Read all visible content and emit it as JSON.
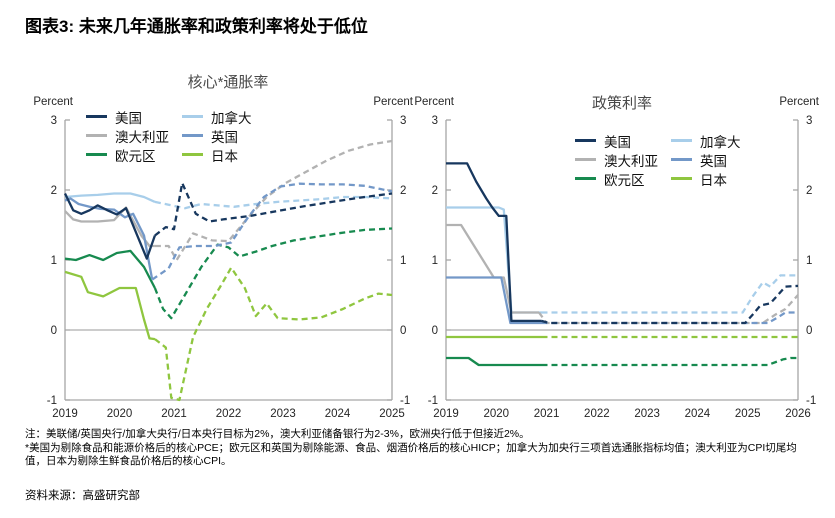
{
  "title": "图表3: 未来几年通胀率和政策利率将处于低位",
  "notes": [
    "注：美联储/英国央行/加拿大央行/日本央行目标为2%，澳大利亚储备银行为2-3%，欧洲央行低于但接近2%。",
    "*美国为剔除食品和能源价格后的核心PCE；欧元区和英国为剔除能源、食品、烟酒价格后的核心HICP；加拿大为加央行三项首选通胀指标均值；澳大利亚为CPI切尾均值，日本为剔除生鲜食品价格后的核心CPI。"
  ],
  "source": "资料来源：高盛研究部",
  "colors": {
    "us_navy": "#17375E",
    "australia_gray": "#B2B2B2",
    "eurozone_green": "#178A4F",
    "canada_lightblue": "#A8CEEA",
    "uk_steelblue": "#7398C8",
    "japan_yellowgreen": "#8FC63F",
    "axis_gray": "#A6A6A6",
    "zero_line_gray": "#999999"
  },
  "chart_data": [
    {
      "type": "line",
      "title": "核心*通胀率",
      "ylabel_left": "Percent",
      "ylabel_right": "Percent",
      "ylim": [
        -1,
        3
      ],
      "xlim": [
        2019,
        2025
      ],
      "y_ticks": [
        -1,
        0,
        1,
        2,
        3
      ],
      "x_ticks": [
        2019,
        2020,
        2021,
        2022,
        2023,
        2024,
        2025
      ],
      "forecast_start": 2020.65,
      "forecast_style": "dashed",
      "grid": "zero-line-only",
      "legend_position": "top-center-two-columns",
      "draw_order": [
        5,
        2,
        1,
        3,
        4,
        0
      ],
      "series": [
        {
          "name": "美国",
          "color": "#17375E",
          "points": [
            [
              2019,
              1.95
            ],
            [
              2019.15,
              1.71
            ],
            [
              2019.3,
              1.66
            ],
            [
              2019.45,
              1.71
            ],
            [
              2019.6,
              1.78
            ],
            [
              2019.78,
              1.71
            ],
            [
              2019.95,
              1.65
            ],
            [
              2020.12,
              1.74
            ],
            [
              2020.5,
              1.02
            ],
            [
              2020.65,
              1.35
            ],
            [
              2020.85,
              1.47
            ],
            [
              2021.0,
              1.44
            ],
            [
              2021.15,
              2.1
            ],
            [
              2021.4,
              1.66
            ],
            [
              2021.65,
              1.55
            ],
            [
              2021.9,
              1.58
            ],
            [
              2022.4,
              1.63
            ],
            [
              2022.9,
              1.7
            ],
            [
              2023.4,
              1.77
            ],
            [
              2023.9,
              1.83
            ],
            [
              2024.4,
              1.89
            ],
            [
              2025,
              1.95
            ]
          ]
        },
        {
          "name": "澳大利亚",
          "color": "#B2B2B2",
          "points": [
            [
              2019,
              1.7
            ],
            [
              2019.15,
              1.58
            ],
            [
              2019.3,
              1.55
            ],
            [
              2019.6,
              1.55
            ],
            [
              2019.9,
              1.57
            ],
            [
              2020.12,
              1.75
            ],
            [
              2020.4,
              1.35
            ],
            [
              2020.55,
              1.2
            ],
            [
              2020.65,
              1.2
            ],
            [
              2020.9,
              1.2
            ],
            [
              2021.05,
              1.0
            ],
            [
              2021.35,
              1.38
            ],
            [
              2021.7,
              1.28
            ],
            [
              2022.0,
              1.27
            ],
            [
              2022.35,
              1.6
            ],
            [
              2022.7,
              1.9
            ],
            [
              2023.05,
              2.1
            ],
            [
              2023.4,
              2.25
            ],
            [
              2023.8,
              2.42
            ],
            [
              2024.2,
              2.56
            ],
            [
              2024.6,
              2.65
            ],
            [
              2025,
              2.7
            ]
          ]
        },
        {
          "name": "欧元区",
          "color": "#178A4F",
          "points": [
            [
              2019,
              1.02
            ],
            [
              2019.2,
              1.0
            ],
            [
              2019.45,
              1.07
            ],
            [
              2019.7,
              1.0
            ],
            [
              2019.95,
              1.1
            ],
            [
              2020.2,
              1.13
            ],
            [
              2020.45,
              0.9
            ],
            [
              2020.65,
              0.6
            ],
            [
              2020.8,
              0.3
            ],
            [
              2020.95,
              0.17
            ],
            [
              2021.2,
              0.5
            ],
            [
              2021.5,
              0.9
            ],
            [
              2021.8,
              1.22
            ],
            [
              2022.0,
              1.18
            ],
            [
              2022.2,
              1.05
            ],
            [
              2022.5,
              1.12
            ],
            [
              2022.8,
              1.2
            ],
            [
              2023.2,
              1.28
            ],
            [
              2023.6,
              1.33
            ],
            [
              2024.0,
              1.38
            ],
            [
              2024.5,
              1.43
            ],
            [
              2025,
              1.45
            ]
          ]
        },
        {
          "name": "加拿大",
          "color": "#A8CEEA",
          "points": [
            [
              2019,
              1.9
            ],
            [
              2019.3,
              1.92
            ],
            [
              2019.6,
              1.93
            ],
            [
              2019.9,
              1.95
            ],
            [
              2020.2,
              1.95
            ],
            [
              2020.45,
              1.9
            ],
            [
              2020.65,
              1.83
            ],
            [
              2020.9,
              1.79
            ],
            [
              2021.2,
              1.74
            ],
            [
              2021.5,
              1.8
            ],
            [
              2021.8,
              1.78
            ],
            [
              2022.1,
              1.76
            ],
            [
              2022.5,
              1.8
            ],
            [
              2022.9,
              1.83
            ],
            [
              2023.3,
              1.85
            ],
            [
              2023.7,
              1.87
            ],
            [
              2024.1,
              1.9
            ],
            [
              2024.5,
              1.9
            ],
            [
              2025,
              1.88
            ]
          ]
        },
        {
          "name": "英国",
          "color": "#7398C8",
          "points": [
            [
              2019,
              1.85
            ],
            [
              2019.1,
              1.88
            ],
            [
              2019.25,
              1.8
            ],
            [
              2019.45,
              1.76
            ],
            [
              2019.65,
              1.73
            ],
            [
              2019.9,
              1.72
            ],
            [
              2020.1,
              1.61
            ],
            [
              2020.25,
              1.66
            ],
            [
              2020.45,
              1.35
            ],
            [
              2020.6,
              0.72
            ],
            [
              2020.9,
              0.88
            ],
            [
              2021.1,
              1.18
            ],
            [
              2021.4,
              1.2
            ],
            [
              2021.75,
              1.2
            ],
            [
              2022.05,
              1.25
            ],
            [
              2022.35,
              1.6
            ],
            [
              2022.65,
              1.9
            ],
            [
              2022.95,
              2.05
            ],
            [
              2023.3,
              2.09
            ],
            [
              2023.7,
              2.08
            ],
            [
              2024.1,
              2.08
            ],
            [
              2024.5,
              2.06
            ],
            [
              2025,
              1.98
            ]
          ]
        },
        {
          "name": "日本",
          "color": "#8FC63F",
          "points": [
            [
              2019,
              0.83
            ],
            [
              2019.3,
              0.76
            ],
            [
              2019.42,
              0.54
            ],
            [
              2019.7,
              0.48
            ],
            [
              2020.0,
              0.6
            ],
            [
              2020.3,
              0.6
            ],
            [
              2020.45,
              0.15
            ],
            [
              2020.55,
              -0.12
            ],
            [
              2020.65,
              -0.13
            ],
            [
              2020.85,
              -0.25
            ],
            [
              2020.95,
              -0.97
            ],
            [
              2021.1,
              -1.0
            ],
            [
              2021.35,
              -0.1
            ],
            [
              2021.6,
              0.3
            ],
            [
              2021.85,
              0.62
            ],
            [
              2022.05,
              0.89
            ],
            [
              2022.3,
              0.6
            ],
            [
              2022.5,
              0.2
            ],
            [
              2022.7,
              0.38
            ],
            [
              2022.9,
              0.17
            ],
            [
              2023.3,
              0.15
            ],
            [
              2023.7,
              0.18
            ],
            [
              2024.1,
              0.3
            ],
            [
              2024.5,
              0.45
            ],
            [
              2024.75,
              0.52
            ],
            [
              2025,
              0.5
            ]
          ]
        }
      ]
    },
    {
      "type": "line",
      "title": "政策利率",
      "ylabel_left": "Percent",
      "ylabel_right": "Percent",
      "ylim": [
        -1,
        3
      ],
      "xlim": [
        2019,
        2026
      ],
      "y_ticks": [
        -1,
        0,
        1,
        2,
        3
      ],
      "x_ticks": [
        2019,
        2020,
        2021,
        2022,
        2023,
        2024,
        2025,
        2026
      ],
      "forecast_start": 2020.9,
      "forecast_style": "dashed",
      "grid": "zero-line-only",
      "legend_position": "top-center-two-columns",
      "draw_order": [
        5,
        2,
        3,
        1,
        4,
        0
      ],
      "series": [
        {
          "name": "美国",
          "color": "#17375E",
          "points": [
            [
              2019,
              2.38
            ],
            [
              2019.42,
              2.38
            ],
            [
              2019.6,
              2.12
            ],
            [
              2019.8,
              1.88
            ],
            [
              2019.92,
              1.75
            ],
            [
              2020.05,
              1.63
            ],
            [
              2020.2,
              1.63
            ],
            [
              2020.3,
              0.13
            ],
            [
              2020.9,
              0.13
            ],
            [
              2021.05,
              0.1
            ],
            [
              2024.95,
              0.1
            ],
            [
              2025.1,
              0.22
            ],
            [
              2025.25,
              0.35
            ],
            [
              2025.45,
              0.38
            ],
            [
              2025.6,
              0.5
            ],
            [
              2025.75,
              0.62
            ],
            [
              2026,
              0.63
            ]
          ]
        },
        {
          "name": "澳大利亚",
          "color": "#B2B2B2",
          "points": [
            [
              2019,
              1.5
            ],
            [
              2019.3,
              1.5
            ],
            [
              2019.95,
              0.75
            ],
            [
              2020.15,
              0.75
            ],
            [
              2020.3,
              0.25
            ],
            [
              2020.85,
              0.25
            ],
            [
              2021.0,
              0.1
            ],
            [
              2025.3,
              0.1
            ],
            [
              2025.55,
              0.22
            ],
            [
              2025.75,
              0.3
            ],
            [
              2025.9,
              0.42
            ],
            [
              2026,
              0.5
            ]
          ]
        },
        {
          "name": "欧元区",
          "color": "#178A4F",
          "points": [
            [
              2019,
              -0.4
            ],
            [
              2019.45,
              -0.4
            ],
            [
              2019.65,
              -0.5
            ],
            [
              2020.9,
              -0.5
            ],
            [
              2025.4,
              -0.5
            ],
            [
              2025.7,
              -0.42
            ],
            [
              2025.85,
              -0.4
            ],
            [
              2026,
              -0.4
            ]
          ]
        },
        {
          "name": "加拿大",
          "color": "#A8CEEA",
          "points": [
            [
              2019,
              1.75
            ],
            [
              2020.05,
              1.75
            ],
            [
              2020.15,
              1.72
            ],
            [
              2020.3,
              0.25
            ],
            [
              2020.9,
              0.25
            ],
            [
              2024.9,
              0.25
            ],
            [
              2025.1,
              0.48
            ],
            [
              2025.3,
              0.68
            ],
            [
              2025.45,
              0.62
            ],
            [
              2025.65,
              0.78
            ],
            [
              2026,
              0.78
            ]
          ]
        },
        {
          "name": "英国",
          "color": "#7398C8",
          "points": [
            [
              2019,
              0.75
            ],
            [
              2020.1,
              0.75
            ],
            [
              2020.28,
              0.1
            ],
            [
              2020.9,
              0.1
            ],
            [
              2025.4,
              0.1
            ],
            [
              2025.6,
              0.18
            ],
            [
              2025.75,
              0.25
            ],
            [
              2026,
              0.25
            ]
          ]
        },
        {
          "name": "日本",
          "color": "#8FC63F",
          "points": [
            [
              2019,
              -0.1
            ],
            [
              2020.9,
              -0.1
            ],
            [
              2026,
              -0.1
            ]
          ]
        }
      ]
    }
  ]
}
